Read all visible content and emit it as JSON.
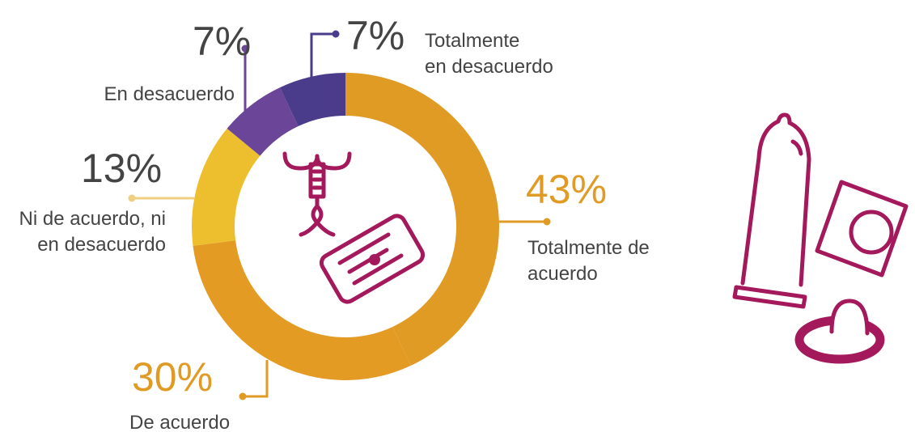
{
  "chart_data": {
    "type": "pie",
    "categories": [
      "Totalmente de\nacuerdo",
      "De acuerdo",
      "Ni de acuerdo, ni\nen desacuerdo",
      "En desacuerdo",
      "Totalmente\nen desacuerdo"
    ],
    "values": [
      43,
      30,
      13,
      7,
      7
    ],
    "value_labels": [
      "43%",
      "30%",
      "13%",
      "7%",
      "7%"
    ],
    "colors": [
      "#e09b25",
      "#e39b24",
      "#edbf2e",
      "#6b4597",
      "#4a3c8a"
    ]
  }
}
